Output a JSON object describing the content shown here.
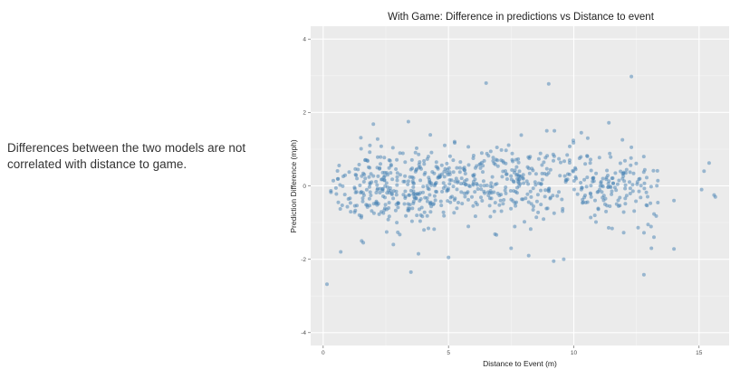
{
  "caption": "Differences between the two models are not correlated with distance to game.",
  "chart_data": {
    "type": "scatter",
    "title": "With Game: Difference in predictions vs Distance to event",
    "xlabel": "Distance to Event (m)",
    "ylabel": "Prediction Difference (mph)",
    "xlim": [
      -0.5,
      16.2
    ],
    "ylim": [
      -4.35,
      4.35
    ],
    "xticks": [
      0,
      5,
      10,
      15
    ],
    "yticks": [
      -4,
      -2,
      0,
      2,
      4
    ],
    "grid": true,
    "point_color": "#4682b4",
    "panel_color": "#ebebeb",
    "outliers": [
      {
        "x": 0.15,
        "y": -2.68
      },
      {
        "x": 6.5,
        "y": 2.8
      },
      {
        "x": 9.0,
        "y": 2.78
      },
      {
        "x": 12.3,
        "y": 2.98
      },
      {
        "x": 3.5,
        "y": -2.35
      },
      {
        "x": 12.8,
        "y": -2.42
      },
      {
        "x": 0.7,
        "y": -1.8
      },
      {
        "x": 1.6,
        "y": -1.55
      },
      {
        "x": 2.8,
        "y": -1.6
      },
      {
        "x": 3.8,
        "y": -1.85
      },
      {
        "x": 5.0,
        "y": -1.95
      },
      {
        "x": 7.5,
        "y": -1.7
      },
      {
        "x": 8.2,
        "y": -1.9
      },
      {
        "x": 9.2,
        "y": -2.05
      },
      {
        "x": 9.6,
        "y": -2.0
      },
      {
        "x": 13.1,
        "y": -1.7
      },
      {
        "x": 14.0,
        "y": -1.72
      },
      {
        "x": 2.0,
        "y": 1.68
      },
      {
        "x": 3.4,
        "y": 1.75
      },
      {
        "x": 10.3,
        "y": 1.45
      },
      {
        "x": 11.4,
        "y": 1.72
      },
      {
        "x": 12.3,
        "y": 1.05
      },
      {
        "x": 13.2,
        "y": -1.4
      },
      {
        "x": 15.4,
        "y": 0.62
      },
      {
        "x": 15.2,
        "y": 0.4
      },
      {
        "x": 15.1,
        "y": -0.1
      },
      {
        "x": 15.6,
        "y": -0.25
      },
      {
        "x": 15.65,
        "y": -0.3
      },
      {
        "x": 14.0,
        "y": -0.4
      }
    ],
    "clusters": [
      {
        "x_min": 0.3,
        "x_max": 1.5,
        "y_mean": 0.0,
        "y_sd": 0.45,
        "n": 40
      },
      {
        "x_min": 1.5,
        "x_max": 4.5,
        "y_mean": -0.05,
        "y_sd": 0.5,
        "n": 240
      },
      {
        "x_min": 4.5,
        "x_max": 8.5,
        "y_mean": 0.05,
        "y_sd": 0.48,
        "n": 250
      },
      {
        "x_min": 8.5,
        "x_max": 12.5,
        "y_mean": 0.05,
        "y_sd": 0.5,
        "n": 190
      },
      {
        "x_min": 12.5,
        "x_max": 13.4,
        "y_mean": -0.1,
        "y_sd": 0.6,
        "n": 30
      }
    ]
  }
}
